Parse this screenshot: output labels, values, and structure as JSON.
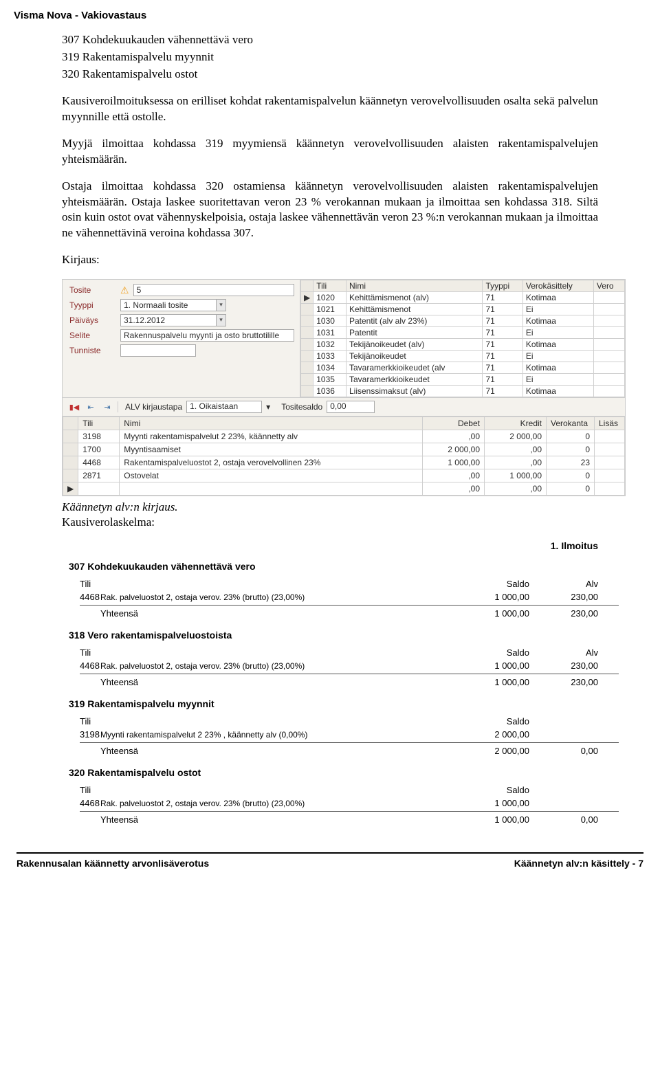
{
  "header": {
    "title": "Visma Nova - Vakiovastaus"
  },
  "intro": {
    "lines": [
      "307 Kohdekuukauden vähennettävä vero",
      "319 Rakentamispalvelu myynnit",
      "320 Rakentamispalvelu ostot"
    ],
    "p1": "Kausiveroilmoituksessa on erilliset kohdat rakentamispalvelun käännetyn verovelvollisuuden osalta sekä palvelun myynnille että ostolle.",
    "p2": "Myyjä ilmoittaa kohdassa 319 myymiensä käännetyn verovelvollisuuden alaisten rakentamispalvelujen yhteismäärän.",
    "p3": "Ostaja ilmoittaa kohdassa 320 ostamiensa käännetyn verovelvollisuuden alaisten rakentamispalvelujen yhteismäärän. Ostaja laskee suoritettavan veron 23 % verokannan mukaan ja ilmoittaa sen kohdassa 318. Siltä osin kuin ostot ovat vähennyskelpoisia, ostaja laskee vähennettävän veron 23 %:n verokannan mukaan ja ilmoittaa ne vähennettävinä veroina kohdassa 307.",
    "kirjaus_label": "Kirjaus:"
  },
  "shot1": {
    "form": {
      "tosite_label": "Tosite",
      "tosite_value": "5",
      "tyyppi_label": "Tyyppi",
      "tyyppi_value": "1. Normaali tosite",
      "paivays_label": "Päiväys",
      "paivays_value": "31.12.2012",
      "selite_label": "Selite",
      "selite_value": "Rakennuspalvelu myynti ja osto bruttotilille",
      "tunniste_label": "Tunniste",
      "tunniste_value": ""
    },
    "grid1": {
      "headers": [
        "Tili",
        "Nimi",
        "Tyyppi",
        "Verokäsittely",
        "Vero"
      ],
      "rows": [
        [
          "1020",
          "Kehittämismenot (alv)",
          "71",
          "Kotimaa",
          ""
        ],
        [
          "1021",
          "Kehittämismenot",
          "71",
          "Ei",
          ""
        ],
        [
          "1030",
          "Patentit (alv alv 23%)",
          "71",
          "Kotimaa",
          ""
        ],
        [
          "1031",
          "Patentit",
          "71",
          "Ei",
          ""
        ],
        [
          "1032",
          "Tekijänoikeudet (alv)",
          "71",
          "Kotimaa",
          ""
        ],
        [
          "1033",
          "Tekijänoikeudet",
          "71",
          "Ei",
          ""
        ],
        [
          "1034",
          "Tavaramerkkioikeudet (alv",
          "71",
          "Kotimaa",
          ""
        ],
        [
          "1035",
          "Tavaramerkkioikeudet",
          "71",
          "Ei",
          ""
        ],
        [
          "1036",
          "Liisenssimaksut (alv)",
          "71",
          "Kotimaa",
          ""
        ]
      ]
    },
    "toolbar": {
      "alv_label": "ALV kirjaustapa",
      "alv_value": "1. Oikaistaan",
      "saldo_label": "Tositesaldo",
      "saldo_value": "0,00"
    },
    "grid2": {
      "headers": [
        "Tili",
        "Nimi",
        "Debet",
        "Kredit",
        "Verokanta",
        "Lisäs"
      ],
      "rows": [
        [
          "3198",
          "Myynti rakentamispalvelut 2 23%, käännetty alv",
          ",00",
          "2 000,00",
          "0",
          ""
        ],
        [
          "1700",
          "Myyntisaamiset",
          "2 000,00",
          ",00",
          "0",
          ""
        ],
        [
          "4468",
          "Rakentamispalveluostot 2, ostaja verovelvollinen 23%",
          "1 000,00",
          ",00",
          "23",
          ""
        ],
        [
          "2871",
          "Ostovelat",
          ",00",
          "1 000,00",
          "0",
          ""
        ],
        [
          "",
          "",
          ",00",
          ",00",
          "0",
          ""
        ]
      ]
    }
  },
  "caption1": "Käännetyn alv:n kirjaus.",
  "caption2": "Kausiverolaskelma:",
  "shot2": {
    "ilm": "1. Ilmoitus",
    "sections": [
      {
        "title": "307 Kohdekuukauden vähennettävä vero",
        "headers": [
          "Tili",
          "",
          "Saldo",
          "Alv"
        ],
        "row": [
          "4468",
          "Rak. palveluostot 2, ostaja verov. 23% (brutto) (23,00%)",
          "1 000,00",
          "230,00"
        ],
        "sum": [
          "Yhteensä",
          "1 000,00",
          "230,00"
        ]
      },
      {
        "title": "318 Vero rakentamispalveluostoista",
        "headers": [
          "Tili",
          "",
          "Saldo",
          "Alv"
        ],
        "row": [
          "4468",
          "Rak. palveluostot 2, ostaja verov. 23% (brutto) (23,00%)",
          "1 000,00",
          "230,00"
        ],
        "sum": [
          "Yhteensä",
          "1 000,00",
          "230,00"
        ]
      },
      {
        "title": "319 Rakentamispalvelu myynnit",
        "headers": [
          "Tili",
          "",
          "Saldo",
          ""
        ],
        "row": [
          "3198",
          "Myynti rakentamispalvelut 2 23% , käännetty alv (0,00%)",
          "2 000,00",
          ""
        ],
        "sum": [
          "Yhteensä",
          "2 000,00",
          "0,00"
        ]
      },
      {
        "title": "320 Rakentamispalvelu ostot",
        "headers": [
          "Tili",
          "",
          "Saldo",
          ""
        ],
        "row": [
          "4468",
          "Rak. palveluostot 2, ostaja verov. 23% (brutto) (23,00%)",
          "1 000,00",
          ""
        ],
        "sum": [
          "Yhteensä",
          "1 000,00",
          "0,00"
        ]
      }
    ]
  },
  "footer": {
    "left": "Rakennusalan käännetty arvonlisäverotus",
    "right": "Käännetyn alv:n käsittely - 7"
  }
}
